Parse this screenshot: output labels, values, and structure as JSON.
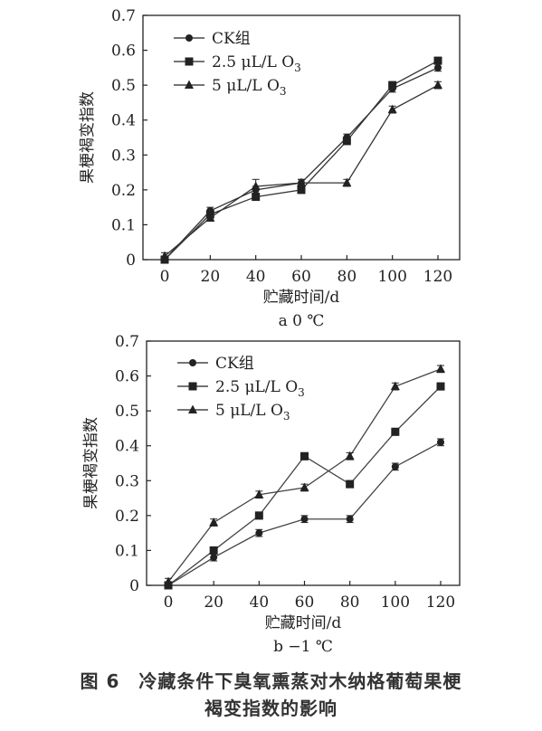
{
  "caption": {
    "line1": "图 6　冷藏条件下臭氧熏蒸对木纳格葡萄果梗",
    "line2": "褐变指数的影响"
  },
  "chart_data": [
    {
      "type": "line",
      "subtitle": "a 0 ℃",
      "xlabel": "贮藏时间/d",
      "ylabel": "果梗褐变指数",
      "x": [
        0,
        20,
        40,
        60,
        80,
        100,
        120
      ],
      "xlim": [
        0,
        120
      ],
      "ylim": [
        0,
        0.7
      ],
      "yticks": [
        "0",
        "0.1",
        "0.2",
        "0.3",
        "0.4",
        "0.5",
        "0.6",
        "0.7"
      ],
      "xticks": [
        "0",
        "20",
        "40",
        "60",
        "80",
        "100",
        "120"
      ],
      "legend": "top-left",
      "series": [
        {
          "name": "CK组",
          "marker": "circle",
          "values": [
            0.0,
            0.14,
            0.2,
            0.22,
            0.35,
            0.49,
            0.55
          ],
          "errors": [
            0.01,
            0.01,
            0.01,
            0.01,
            0.01,
            0.01,
            0.01
          ]
        },
        {
          "name": "2.5 μL/L O",
          "sub": "3",
          "marker": "square",
          "values": [
            0.0,
            0.13,
            0.18,
            0.2,
            0.34,
            0.5,
            0.57
          ],
          "errors": [
            0.01,
            0.01,
            0.01,
            0.01,
            0.01,
            0.01,
            0.01
          ]
        },
        {
          "name": "5 μL/L O",
          "sub": "3",
          "marker": "triangle",
          "values": [
            0.01,
            0.12,
            0.21,
            0.22,
            0.22,
            0.43,
            0.5
          ],
          "errors": [
            0.01,
            0.01,
            0.02,
            0.01,
            0.01,
            0.01,
            0.01
          ]
        }
      ]
    },
    {
      "type": "line",
      "subtitle": "b −1 ℃",
      "xlabel": "贮藏时间/d",
      "ylabel": "果梗褐变指数",
      "x": [
        0,
        20,
        40,
        60,
        80,
        100,
        120
      ],
      "xlim": [
        0,
        120
      ],
      "ylim": [
        0,
        0.7
      ],
      "yticks": [
        "0",
        "0.1",
        "0.2",
        "0.3",
        "0.4",
        "0.5",
        "0.6",
        "0.7"
      ],
      "xticks": [
        "0",
        "20",
        "40",
        "60",
        "80",
        "100",
        "120"
      ],
      "legend": "top-left",
      "series": [
        {
          "name": "CK组",
          "marker": "circle",
          "values": [
            0.0,
            0.08,
            0.15,
            0.19,
            0.19,
            0.34,
            0.41
          ],
          "errors": [
            0.01,
            0.01,
            0.01,
            0.01,
            0.01,
            0.01,
            0.01
          ]
        },
        {
          "name": "2.5 μL/L O",
          "sub": "3",
          "marker": "square",
          "values": [
            0.0,
            0.1,
            0.2,
            0.37,
            0.29,
            0.44,
            0.57
          ],
          "errors": [
            0.01,
            0.01,
            0.01,
            0.01,
            0.01,
            0.01,
            0.01
          ]
        },
        {
          "name": "5 μL/L O",
          "sub": "3",
          "marker": "triangle",
          "values": [
            0.01,
            0.18,
            0.26,
            0.28,
            0.37,
            0.57,
            0.62
          ],
          "errors": [
            0.01,
            0.01,
            0.01,
            0.01,
            0.01,
            0.01,
            0.01
          ]
        }
      ]
    }
  ]
}
